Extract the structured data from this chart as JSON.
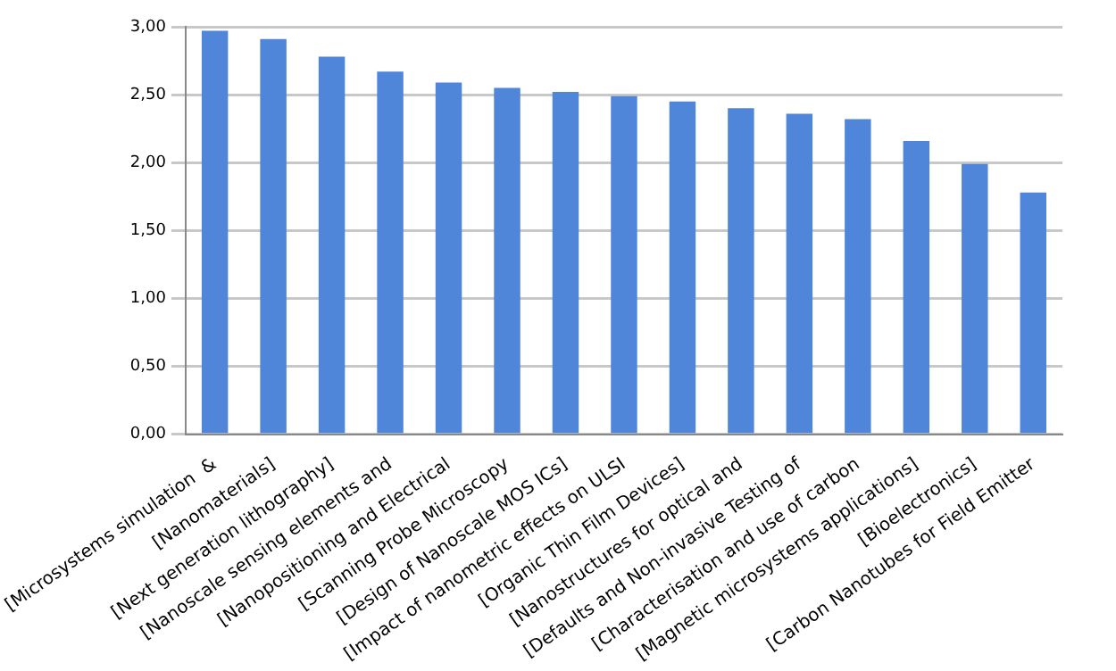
{
  "chart_data": {
    "type": "bar",
    "categories": [
      "[Microsystems simulation  &",
      "[Nanomaterials]",
      "[Next generation lithography]",
      "[Nanoscale sensing elements and",
      "[Nanopositioning and Electrical",
      "[Scanning Probe Microscopy",
      "[Design of Nanoscale MOS ICs]",
      "[Impact of nanometric effects on ULSI",
      "[Organic Thin Film Devices]",
      "[Nanostructures for optical and",
      "[Defaults and Non-invasive Testing of",
      "[Characterisation and use of carbon",
      "[Magnetic microsystems applications]",
      "[Bioelectronics]",
      "[Carbon Nanotubes for Field Emitter"
    ],
    "values": [
      2.97,
      2.91,
      2.78,
      2.67,
      2.59,
      2.55,
      2.52,
      2.49,
      2.45,
      2.4,
      2.36,
      2.32,
      2.16,
      1.99,
      1.78
    ],
    "color": "#4f86d9",
    "ylim": [
      0,
      3
    ],
    "yticks": [
      {
        "value": 0,
        "label": "0,00"
      },
      {
        "value": 0.5,
        "label": "0,50"
      },
      {
        "value": 1,
        "label": "1,00"
      },
      {
        "value": 1.5,
        "label": "1,50"
      },
      {
        "value": 2,
        "label": "2,00"
      },
      {
        "value": 2.5,
        "label": "2,50"
      },
      {
        "value": 3,
        "label": "3,00"
      }
    ],
    "grid": "y",
    "legend": false
  }
}
